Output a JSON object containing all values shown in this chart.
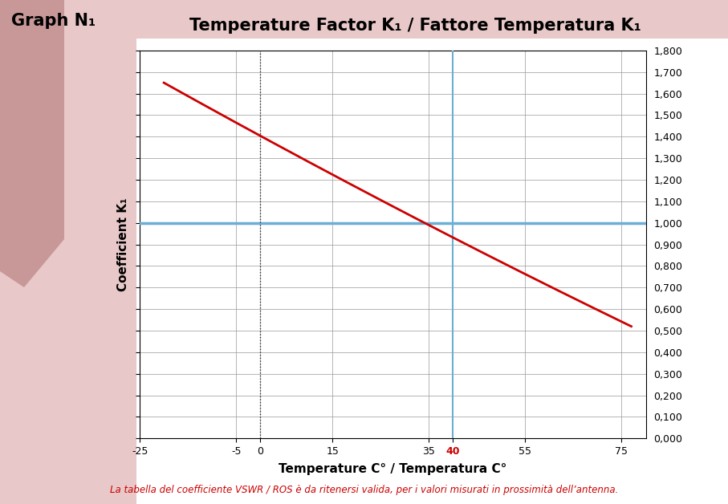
{
  "title": "Temperature Factor K₁ / Fattore Temperatura K₁",
  "graph_label": "Graph N₁",
  "xlabel": "Temperature C° / Temperatura C°",
  "ylabel": "Coefficient K₁",
  "footnote": "La tabella del coefficiente VSWR / ROS è da ritenersi valida, per i valori misurati in prossimità dell’antenna.",
  "xmin": -25,
  "xmax": 80,
  "ymin": 0.0,
  "ymax": 1.8,
  "xticks": [
    -25,
    -5,
    0,
    15,
    35,
    40,
    55,
    75
  ],
  "xtick_labels": [
    "-25",
    "-5",
    "0",
    "15",
    "35",
    "40",
    "55",
    "75"
  ],
  "ytick_step": 0.1,
  "curve_color": "#cc0000",
  "hline_color": "#6baed6",
  "vline_color": "#6baed6",
  "hline_y": 1.0,
  "vline_x": 40,
  "vline0_x": 0,
  "title_fontsize": 15,
  "graph_label_fontsize": 15,
  "xlabel_fontsize": 11,
  "ylabel_fontsize": 11,
  "tick_fontsize": 9,
  "footnote_fontsize": 8.5,
  "footnote_color": "#cc0000",
  "curve_x_start": -20,
  "curve_x_end": 77,
  "curve_y_start": 1.65,
  "curve_y_end": 0.52,
  "bg_light_color": "#e8c8c8",
  "bg_dark_color": "#c89898",
  "bg_darker_color": "#b07070"
}
